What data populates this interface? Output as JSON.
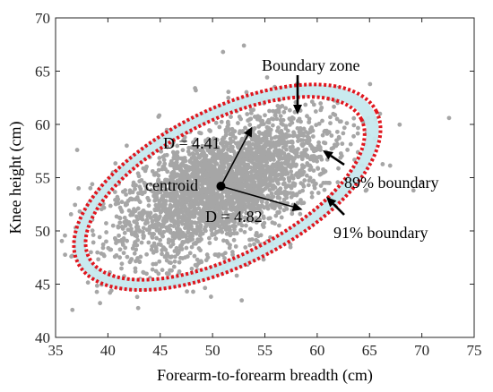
{
  "chart_data": {
    "type": "scatter",
    "xlabel": "Forearm-to-forearm breadth (cm)",
    "ylabel": "Knee height (cm)",
    "xlim": [
      35,
      75
    ],
    "ylim": [
      40,
      70
    ],
    "xticks": [
      "35",
      "40",
      "45",
      "50",
      "55",
      "60",
      "65",
      "70",
      "75"
    ],
    "yticks": [
      "40",
      "45",
      "50",
      "55",
      "60",
      "65",
      "70"
    ],
    "grid": false,
    "colors": {
      "points": "#a6a6a6",
      "boundary": "#e0161e",
      "zone_fill": "#c6e9ee",
      "centroid": "#000000"
    },
    "centroid": {
      "x": 50.8,
      "y": 54.2
    },
    "boundaries": [
      {
        "level": "89%",
        "cx": 51.2,
        "cy": 54.0,
        "rx": 14.6,
        "ry": 6.3,
        "angle_deg": 27
      },
      {
        "level": "91%",
        "cx": 51.4,
        "cy": 54.1,
        "rx": 16.0,
        "ry": 7.3,
        "angle_deg": 27
      }
    ],
    "annotations": {
      "boundary_zone": "Boundary zone",
      "centroid": "centroid",
      "d1": "D = 4.41",
      "d2": "D = 4.82",
      "b89": "89% boundary",
      "b91": "91% boundary"
    },
    "arrows": {
      "d1_tip": {
        "x": 53.8,
        "y": 59.8
      },
      "d2_tip": {
        "x": 58.6,
        "y": 52.0
      }
    },
    "point_cloud": {
      "n": 3000,
      "mean": [
        50.8,
        54.2
      ],
      "sd_major": 5.4,
      "sd_minor": 2.6,
      "angle_deg": 27
    },
    "outliers": [
      [
        72.6,
        60.6
      ],
      [
        69.2,
        53.8
      ],
      [
        37.2,
        54.0
      ],
      [
        40.2,
        44.2
      ],
      [
        42.8,
        43.8
      ],
      [
        53.0,
        67.4
      ],
      [
        51.0,
        66.8
      ],
      [
        48.4,
        63.2
      ],
      [
        70.0,
        54.6
      ],
      [
        66.0,
        61.0
      ],
      [
        38.2,
        52.6
      ],
      [
        41.8,
        58.0
      ]
    ]
  }
}
